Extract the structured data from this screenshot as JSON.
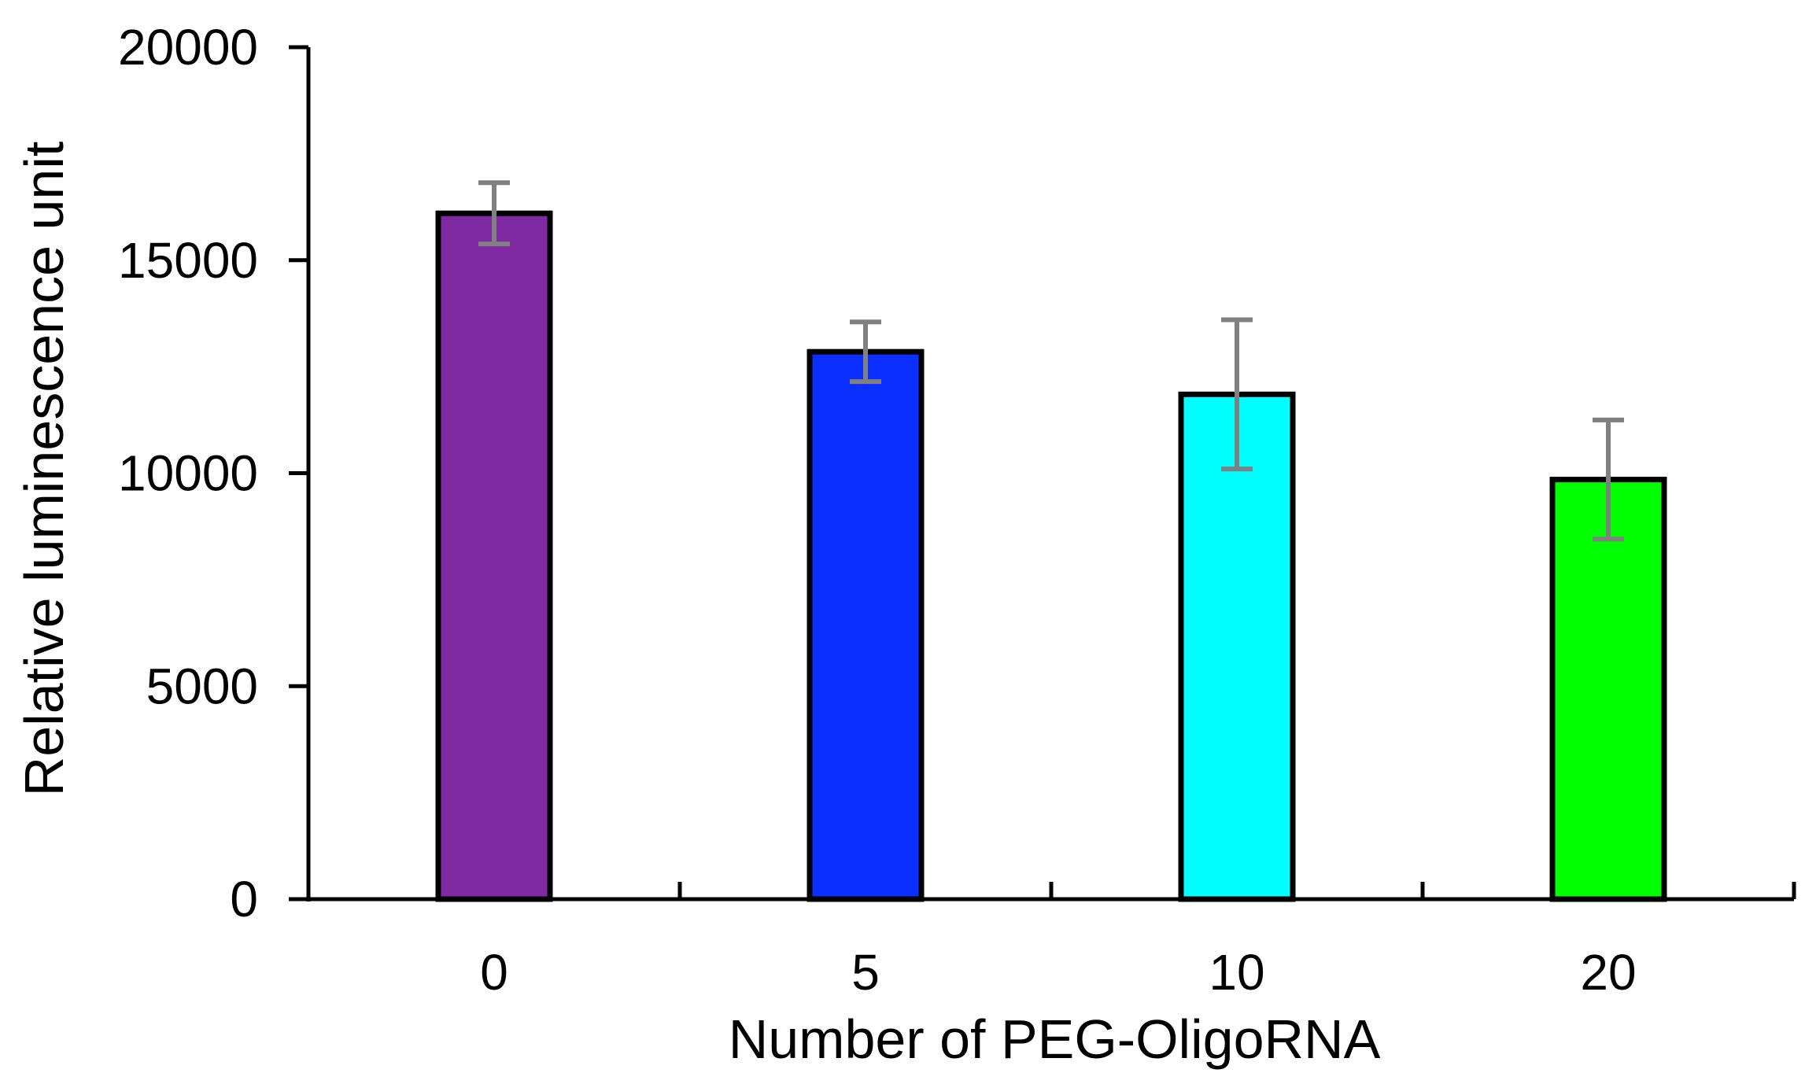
{
  "chart_data": {
    "type": "bar",
    "categories": [
      "0",
      "5",
      "10",
      "20"
    ],
    "values": [
      16100,
      12850,
      11850,
      9850
    ],
    "error": [
      720,
      700,
      1750,
      1400
    ],
    "bar_colors": [
      "#7f2aa3",
      "#0a2fff",
      "#00ffff",
      "#00ff00"
    ],
    "error_color": "#808080",
    "title": "",
    "xlabel": "Number of PEG-OligoRNA",
    "ylabel": "Relative luminescence unit",
    "ylim": [
      0,
      20000
    ],
    "yticks": [
      0,
      5000,
      10000,
      15000,
      20000
    ],
    "ytick_labels": [
      "0",
      "5000",
      "10000",
      "15000",
      "20000"
    ],
    "grid": false,
    "legend": "none"
  }
}
